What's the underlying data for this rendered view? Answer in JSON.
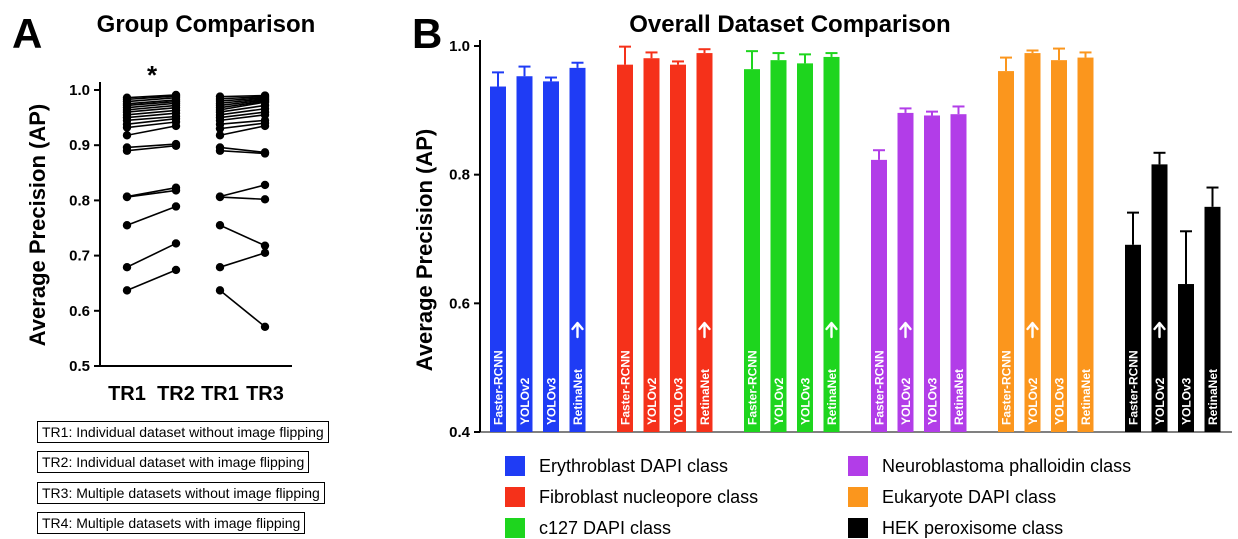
{
  "panel_a": {
    "letter": "A",
    "title": "Group Comparison",
    "ylabel": "Average Precision (AP)",
    "significance": "*",
    "key": [
      "TR1: Individual dataset without image flipping",
      "TR2: Individual dataset with image flipping",
      "TR3: Multiple datasets without image flipping",
      "TR4: Multiple datasets with image flipping"
    ]
  },
  "panel_b": {
    "letter": "B",
    "title": "Overall Dataset Comparison",
    "ylabel": "Average Precision (AP)"
  },
  "chart_data": [
    {
      "type": "scatter",
      "title": "Group Comparison",
      "ylabel": "Average Precision (AP)",
      "ylim": [
        0.5,
        1.0
      ],
      "yticks": [
        "0.5",
        "0.6",
        "0.7",
        "0.8",
        "0.9",
        "1.0"
      ],
      "comparisons": [
        {
          "labels": [
            "TR1",
            "TR2"
          ],
          "significance": "*",
          "pairs": [
            [
              0.986,
              0.991
            ],
            [
              0.983,
              0.989
            ],
            [
              0.979,
              0.986
            ],
            [
              0.975,
              0.982
            ],
            [
              0.972,
              0.979
            ],
            [
              0.968,
              0.976
            ],
            [
              0.964,
              0.972
            ],
            [
              0.96,
              0.968
            ],
            [
              0.955,
              0.963
            ],
            [
              0.95,
              0.958
            ],
            [
              0.945,
              0.952
            ],
            [
              0.938,
              0.948
            ],
            [
              0.932,
              0.942
            ],
            [
              0.918,
              0.935
            ],
            [
              0.896,
              0.902
            ],
            [
              0.89,
              0.899
            ],
            [
              0.807,
              0.823
            ],
            [
              0.806,
              0.818
            ],
            [
              0.755,
              0.789
            ],
            [
              0.679,
              0.722
            ],
            [
              0.637,
              0.674
            ]
          ]
        },
        {
          "labels": [
            "TR1",
            "TR3"
          ],
          "pairs": [
            [
              0.988,
              0.99
            ],
            [
              0.984,
              0.988
            ],
            [
              0.98,
              0.986
            ],
            [
              0.976,
              0.984
            ],
            [
              0.972,
              0.982
            ],
            [
              0.968,
              0.98
            ],
            [
              0.964,
              0.978
            ],
            [
              0.96,
              0.972
            ],
            [
              0.955,
              0.966
            ],
            [
              0.95,
              0.96
            ],
            [
              0.945,
              0.955
            ],
            [
              0.938,
              0.945
            ],
            [
              0.93,
              0.94
            ],
            [
              0.918,
              0.935
            ],
            [
              0.896,
              0.887
            ],
            [
              0.89,
              0.885
            ],
            [
              0.807,
              0.828
            ],
            [
              0.806,
              0.802
            ],
            [
              0.755,
              0.718
            ],
            [
              0.679,
              0.705
            ],
            [
              0.637,
              0.571
            ]
          ]
        }
      ]
    },
    {
      "type": "bar",
      "title": "Overall Dataset Comparison",
      "ylabel": "Average Precision (AP)",
      "ylim": [
        0.4,
        1.0
      ],
      "yticks": [
        "0.4",
        "0.6",
        "0.8",
        "1.0"
      ],
      "models": [
        "Faster-RCNN",
        "YOLOv2",
        "YOLOv3",
        "RetinaNet"
      ],
      "groups": [
        {
          "name": "Erythroblast DAPI class",
          "color": "#1f3cf5",
          "values": [
            0.937,
            0.953,
            0.945,
            0.966
          ],
          "errors": [
            0.022,
            0.015,
            0.006,
            0.008
          ],
          "arrow_index": 3
        },
        {
          "name": "Fibroblast nucleopore class",
          "color": "#f5311a",
          "values": [
            0.971,
            0.981,
            0.971,
            0.989
          ],
          "errors": [
            0.028,
            0.009,
            0.005,
            0.006
          ],
          "arrow_index": 3
        },
        {
          "name": "c127 DAPI class",
          "color": "#1ed51e",
          "values": [
            0.964,
            0.978,
            0.973,
            0.983
          ],
          "errors": [
            0.028,
            0.011,
            0.014,
            0.006
          ],
          "arrow_index": 3
        },
        {
          "name": "Neuroblastoma phalloidin class",
          "color": "#b23de8",
          "values": [
            0.823,
            0.896,
            0.892,
            0.894
          ],
          "errors": [
            0.015,
            0.007,
            0.006,
            0.012
          ],
          "arrow_index": 1
        },
        {
          "name": "Eukaryote DAPI class",
          "color": "#fb961d",
          "values": [
            0.961,
            0.989,
            0.978,
            0.982
          ],
          "errors": [
            0.021,
            0.004,
            0.018,
            0.008
          ],
          "arrow_index": 1
        },
        {
          "name": "HEK peroxisome class",
          "color": "#000000",
          "values": [
            0.691,
            0.816,
            0.63,
            0.75
          ],
          "errors": [
            0.05,
            0.018,
            0.082,
            0.03
          ],
          "arrow_index": 1
        }
      ],
      "legend": [
        "Erythroblast DAPI class",
        "Neuroblastoma phalloidin class",
        "Fibroblast nucleopore class",
        "Eukaryote DAPI class",
        "c127 DAPI class",
        "HEK peroxisome class"
      ]
    }
  ]
}
